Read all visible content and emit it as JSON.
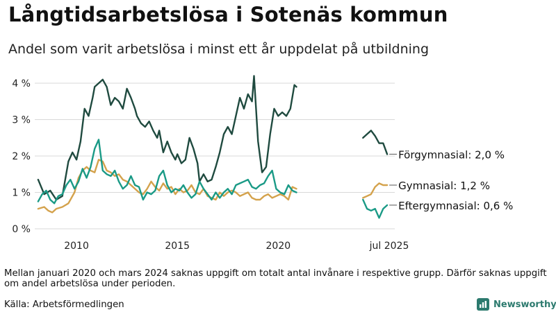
{
  "title": "Långtidsarbetslösa i Sotenäs kommun",
  "subtitle": "Andel som varit arbetslösa i minst ett år uppdelat på utbildning",
  "note": "Mellan januari 2020 och mars 2024 saknas uppgift om totalt antal invånare i respektive grupp. Därför saknas uppgift om andel arbetslösa under perioden.",
  "source": "Källa: Arbetsförmedlingen",
  "brand": "Newsworthy",
  "colors": {
    "forgymnasial": "#1f4a3f",
    "gymnasial": "#d4a24c",
    "eftergymnasial": "#1a9a86",
    "brand": "#2c7a6e"
  },
  "chart_data": {
    "type": "line",
    "title": "Långtidsarbetslösa i Sotenäs kommun",
    "subtitle": "Andel som varit arbetslösa i minst ett år uppdelat på utbildning",
    "xlabel": "",
    "ylabel": "",
    "ylim": [
      0,
      4.2
    ],
    "yticks": [
      0,
      1,
      2,
      3,
      4
    ],
    "ytick_labels": [
      "0 %",
      "1 %",
      "2 %",
      "3 %",
      "4 %"
    ],
    "xticks": [
      2010,
      2015,
      2020,
      2025.5
    ],
    "xtick_labels": [
      "2010",
      "2015",
      "2020",
      "jul 2025"
    ],
    "grid": true,
    "series": [
      {
        "name": "Förgymnasial",
        "end_label": "Förgymnasial: 2,0 %",
        "color": "#1f4a3f",
        "segments": [
          [
            [
              2008.1,
              1.35
            ],
            [
              2008.4,
              0.95
            ],
            [
              2008.7,
              1.05
            ],
            [
              2009.0,
              0.8
            ],
            [
              2009.3,
              0.9
            ],
            [
              2009.6,
              1.85
            ],
            [
              2009.8,
              2.1
            ],
            [
              2010.0,
              1.9
            ],
            [
              2010.2,
              2.4
            ],
            [
              2010.4,
              3.3
            ],
            [
              2010.6,
              3.1
            ],
            [
              2010.8,
              3.6
            ],
            [
              2010.9,
              3.9
            ],
            [
              2011.1,
              4.0
            ],
            [
              2011.3,
              4.1
            ],
            [
              2011.5,
              3.9
            ],
            [
              2011.7,
              3.4
            ],
            [
              2011.9,
              3.6
            ],
            [
              2012.1,
              3.5
            ],
            [
              2012.3,
              3.3
            ],
            [
              2012.5,
              3.85
            ],
            [
              2012.7,
              3.6
            ],
            [
              2012.9,
              3.3
            ],
            [
              2013.0,
              3.1
            ],
            [
              2013.2,
              2.9
            ],
            [
              2013.4,
              2.8
            ],
            [
              2013.6,
              2.95
            ],
            [
              2013.8,
              2.7
            ],
            [
              2014.0,
              2.5
            ],
            [
              2014.1,
              2.7
            ],
            [
              2014.3,
              2.1
            ],
            [
              2014.5,
              2.4
            ],
            [
              2014.7,
              2.1
            ],
            [
              2014.9,
              1.9
            ],
            [
              2015.0,
              2.05
            ],
            [
              2015.2,
              1.8
            ],
            [
              2015.4,
              1.9
            ],
            [
              2015.6,
              2.5
            ],
            [
              2015.8,
              2.2
            ],
            [
              2016.0,
              1.8
            ],
            [
              2016.1,
              1.3
            ],
            [
              2016.3,
              1.5
            ],
            [
              2016.5,
              1.3
            ],
            [
              2016.7,
              1.35
            ],
            [
              2016.9,
              1.7
            ],
            [
              2017.1,
              2.1
            ],
            [
              2017.3,
              2.6
            ],
            [
              2017.5,
              2.8
            ],
            [
              2017.7,
              2.6
            ],
            [
              2017.9,
              3.1
            ],
            [
              2018.1,
              3.6
            ],
            [
              2018.3,
              3.3
            ],
            [
              2018.5,
              3.7
            ],
            [
              2018.7,
              3.5
            ],
            [
              2018.8,
              4.2
            ],
            [
              2018.9,
              3.3
            ],
            [
              2019.0,
              2.4
            ],
            [
              2019.2,
              1.55
            ],
            [
              2019.4,
              1.7
            ],
            [
              2019.6,
              2.6
            ],
            [
              2019.8,
              3.3
            ],
            [
              2020.0,
              3.1
            ],
            [
              2020.2,
              3.2
            ],
            [
              2020.4,
              3.1
            ],
            [
              2020.6,
              3.3
            ],
            [
              2020.8,
              3.95
            ],
            [
              2020.9,
              3.9
            ]
          ],
          [
            [
              2024.2,
              2.5
            ],
            [
              2024.4,
              2.6
            ],
            [
              2024.6,
              2.7
            ],
            [
              2024.8,
              2.55
            ],
            [
              2025.0,
              2.35
            ],
            [
              2025.2,
              2.35
            ],
            [
              2025.4,
              2.05
            ]
          ]
        ]
      },
      {
        "name": "Gymnasial",
        "end_label": "Gymnasial: 1,2 %",
        "color": "#d4a24c",
        "segments": [
          [
            [
              2008.1,
              0.55
            ],
            [
              2008.4,
              0.6
            ],
            [
              2008.6,
              0.5
            ],
            [
              2008.8,
              0.45
            ],
            [
              2009.0,
              0.55
            ],
            [
              2009.3,
              0.6
            ],
            [
              2009.6,
              0.7
            ],
            [
              2009.9,
              1.0
            ],
            [
              2010.1,
              1.4
            ],
            [
              2010.3,
              1.6
            ],
            [
              2010.5,
              1.7
            ],
            [
              2010.7,
              1.6
            ],
            [
              2010.9,
              1.55
            ],
            [
              2011.1,
              1.9
            ],
            [
              2011.3,
              1.85
            ],
            [
              2011.5,
              1.6
            ],
            [
              2011.7,
              1.55
            ],
            [
              2011.9,
              1.45
            ],
            [
              2012.1,
              1.5
            ],
            [
              2012.3,
              1.35
            ],
            [
              2012.5,
              1.3
            ],
            [
              2012.7,
              1.2
            ],
            [
              2012.9,
              1.1
            ],
            [
              2013.1,
              1.0
            ],
            [
              2013.3,
              0.95
            ],
            [
              2013.5,
              1.1
            ],
            [
              2013.7,
              1.3
            ],
            [
              2013.9,
              1.15
            ],
            [
              2014.1,
              1.05
            ],
            [
              2014.3,
              1.25
            ],
            [
              2014.5,
              1.1
            ],
            [
              2014.7,
              1.15
            ],
            [
              2014.9,
              0.95
            ],
            [
              2015.1,
              1.1
            ],
            [
              2015.3,
              1.0
            ],
            [
              2015.5,
              1.05
            ],
            [
              2015.7,
              1.2
            ],
            [
              2015.9,
              1.0
            ],
            [
              2016.1,
              0.95
            ],
            [
              2016.3,
              1.1
            ],
            [
              2016.5,
              0.9
            ],
            [
              2016.7,
              0.85
            ],
            [
              2016.9,
              0.8
            ],
            [
              2017.1,
              1.0
            ],
            [
              2017.3,
              0.9
            ],
            [
              2017.5,
              1.0
            ],
            [
              2017.7,
              1.05
            ],
            [
              2017.9,
              1.0
            ],
            [
              2018.1,
              0.9
            ],
            [
              2018.3,
              0.95
            ],
            [
              2018.5,
              1.0
            ],
            [
              2018.7,
              0.85
            ],
            [
              2018.9,
              0.8
            ],
            [
              2019.1,
              0.8
            ],
            [
              2019.3,
              0.9
            ],
            [
              2019.5,
              0.95
            ],
            [
              2019.7,
              0.85
            ],
            [
              2019.9,
              0.9
            ],
            [
              2020.1,
              0.95
            ],
            [
              2020.3,
              0.9
            ],
            [
              2020.5,
              0.8
            ],
            [
              2020.7,
              1.15
            ],
            [
              2020.9,
              1.1
            ]
          ],
          [
            [
              2024.2,
              0.85
            ],
            [
              2024.4,
              0.9
            ],
            [
              2024.6,
              0.95
            ],
            [
              2024.8,
              1.15
            ],
            [
              2025.0,
              1.25
            ],
            [
              2025.2,
              1.2
            ],
            [
              2025.4,
              1.2
            ]
          ]
        ]
      },
      {
        "name": "Eftergymnasial",
        "end_label": "Eftergymnasial: 0,6 %",
        "color": "#1a9a86",
        "segments": [
          [
            [
              2008.1,
              0.75
            ],
            [
              2008.3,
              0.95
            ],
            [
              2008.5,
              1.05
            ],
            [
              2008.7,
              0.8
            ],
            [
              2008.9,
              0.7
            ],
            [
              2009.1,
              0.9
            ],
            [
              2009.3,
              0.95
            ],
            [
              2009.5,
              1.2
            ],
            [
              2009.7,
              1.35
            ],
            [
              2009.9,
              1.1
            ],
            [
              2010.1,
              1.3
            ],
            [
              2010.3,
              1.65
            ],
            [
              2010.5,
              1.4
            ],
            [
              2010.7,
              1.7
            ],
            [
              2010.9,
              2.2
            ],
            [
              2011.1,
              2.45
            ],
            [
              2011.3,
              1.6
            ],
            [
              2011.5,
              1.5
            ],
            [
              2011.7,
              1.45
            ],
            [
              2011.9,
              1.6
            ],
            [
              2012.1,
              1.3
            ],
            [
              2012.3,
              1.1
            ],
            [
              2012.5,
              1.2
            ],
            [
              2012.7,
              1.45
            ],
            [
              2012.9,
              1.2
            ],
            [
              2013.1,
              1.15
            ],
            [
              2013.3,
              0.8
            ],
            [
              2013.5,
              1.0
            ],
            [
              2013.7,
              0.95
            ],
            [
              2013.9,
              1.05
            ],
            [
              2014.1,
              1.45
            ],
            [
              2014.3,
              1.6
            ],
            [
              2014.5,
              1.2
            ],
            [
              2014.7,
              1.0
            ],
            [
              2014.9,
              1.1
            ],
            [
              2015.1,
              1.05
            ],
            [
              2015.3,
              1.2
            ],
            [
              2015.5,
              1.0
            ],
            [
              2015.7,
              0.85
            ],
            [
              2015.9,
              0.95
            ],
            [
              2016.1,
              1.3
            ],
            [
              2016.3,
              1.1
            ],
            [
              2016.5,
              0.95
            ],
            [
              2016.7,
              0.8
            ],
            [
              2016.9,
              1.0
            ],
            [
              2017.1,
              0.85
            ],
            [
              2017.3,
              1.0
            ],
            [
              2017.5,
              1.1
            ],
            [
              2017.7,
              0.95
            ],
            [
              2017.9,
              1.2
            ],
            [
              2018.1,
              1.25
            ],
            [
              2018.3,
              1.3
            ],
            [
              2018.5,
              1.35
            ],
            [
              2018.7,
              1.15
            ],
            [
              2018.9,
              1.1
            ],
            [
              2019.1,
              1.2
            ],
            [
              2019.3,
              1.25
            ],
            [
              2019.5,
              1.45
            ],
            [
              2019.7,
              1.6
            ],
            [
              2019.9,
              1.1
            ],
            [
              2020.1,
              1.0
            ],
            [
              2020.3,
              0.95
            ],
            [
              2020.5,
              1.2
            ],
            [
              2020.7,
              1.05
            ],
            [
              2020.9,
              1.0
            ]
          ],
          [
            [
              2024.2,
              0.8
            ],
            [
              2024.4,
              0.55
            ],
            [
              2024.6,
              0.5
            ],
            [
              2024.8,
              0.55
            ],
            [
              2025.0,
              0.3
            ],
            [
              2025.2,
              0.55
            ],
            [
              2025.4,
              0.65
            ]
          ]
        ]
      }
    ]
  }
}
